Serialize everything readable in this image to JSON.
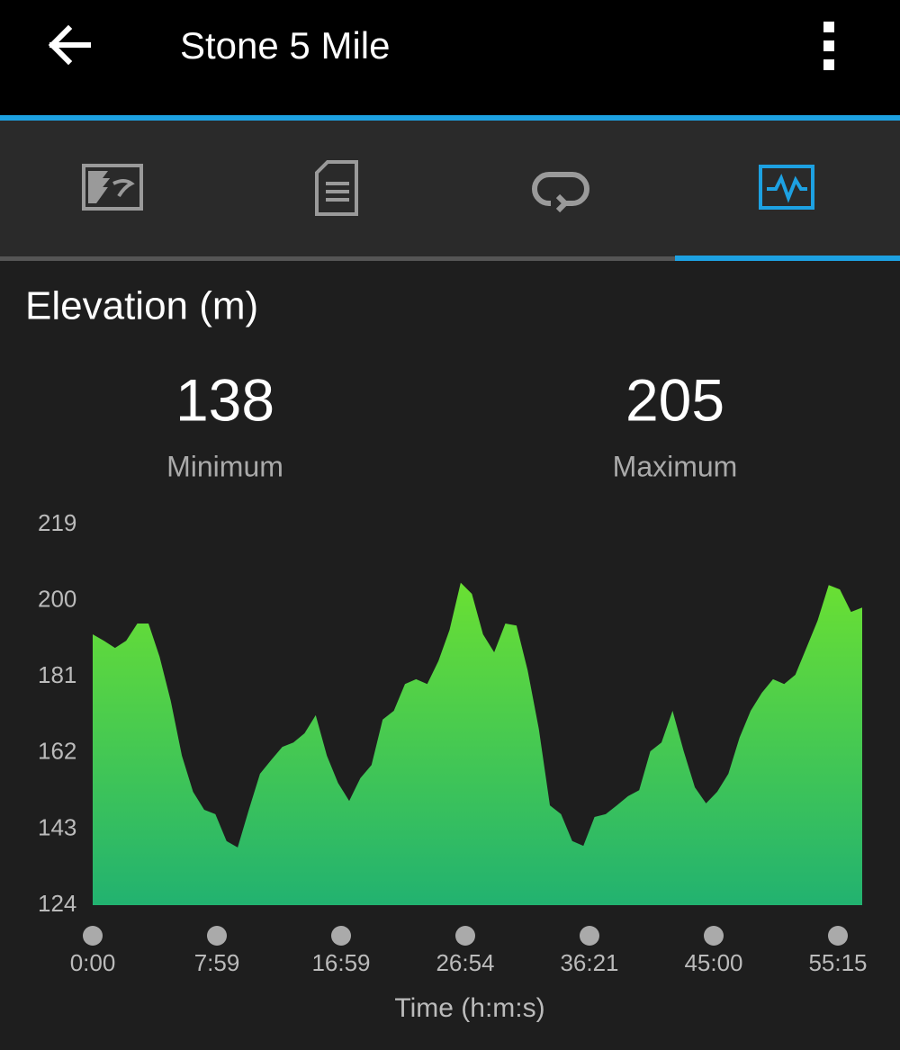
{
  "header": {
    "title": "Stone 5 Mile"
  },
  "stats": [
    {
      "value": 138,
      "label": "Minimum"
    },
    {
      "value": 205,
      "label": "Maximum"
    }
  ],
  "chart_data": {
    "type": "area",
    "title": "Elevation (m)",
    "x_label": "Time (h:m:s)",
    "x_labels": [
      "0:00",
      "7:59",
      "16:59",
      "26:54",
      "36:21",
      "45:00",
      "55:15"
    ],
    "values": [
      191.6,
      190,
      188.2,
      190,
      194.3,
      194.3,
      186,
      175,
      161.3,
      152.3,
      147.8,
      146.7,
      140,
      138.4,
      147.8,
      156.8,
      160.2,
      163.5,
      164.6,
      166.9,
      171.4,
      161.3,
      154.5,
      150,
      155.7,
      159,
      170.3,
      172.5,
      179.2,
      180.4,
      179.2,
      184.9,
      192.7,
      204.5,
      201.7,
      191.6,
      187.1,
      194.3,
      193.8,
      182.6,
      168,
      148.9,
      146.7,
      140,
      138.8,
      146,
      146.7,
      148.9,
      151.2,
      152.7,
      162.4,
      164.6,
      172.5,
      162.4,
      153.4,
      149.4,
      152.3,
      156.8,
      165.8,
      172.5,
      177,
      180.4,
      179.2,
      181.5,
      188.2,
      195,
      203.9,
      202.8,
      197.2,
      198.3
    ],
    "ylim": [
      124,
      219
    ],
    "yticks": [
      124,
      143,
      162,
      181,
      200,
      219
    ],
    "colors": [
      "#6ae033",
      "#22b270"
    ]
  }
}
